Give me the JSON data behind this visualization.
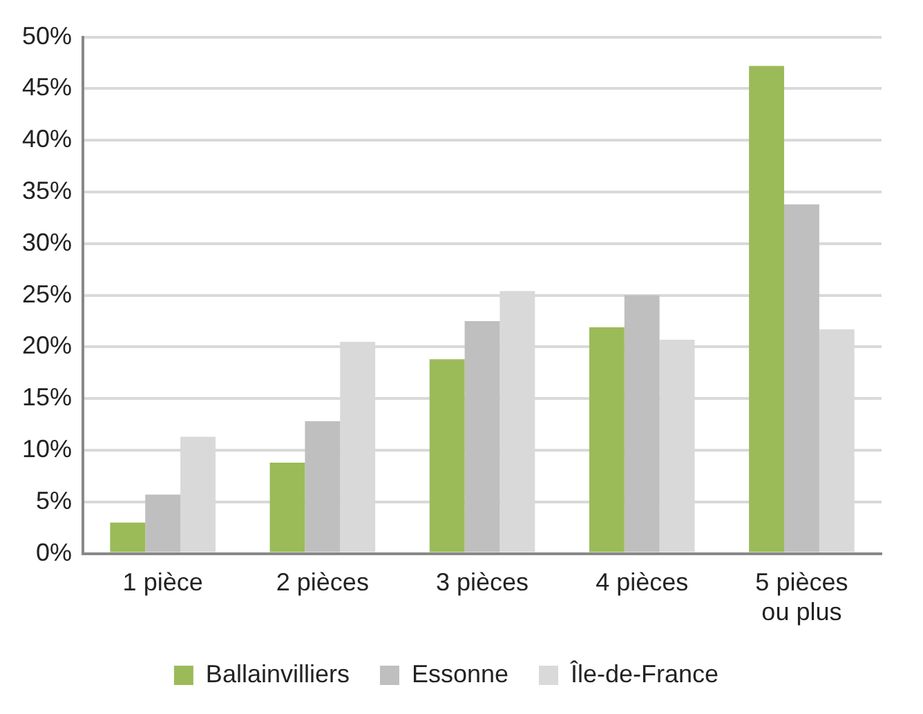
{
  "chart_data": {
    "type": "bar",
    "categories": [
      "1 pièce",
      "2 pièces",
      "3 pièces",
      "4 pièces",
      "5 pièces\nou plus"
    ],
    "series": [
      {
        "name": "Ballainvilliers",
        "color": "#9bbb59",
        "values": [
          3.0,
          8.8,
          18.8,
          21.9,
          47.2
        ]
      },
      {
        "name": "Essonne",
        "color": "#bfbfbf",
        "values": [
          5.7,
          12.8,
          22.5,
          25.0,
          33.8
        ]
      },
      {
        "name": "Île-de-France",
        "color": "#d9d9d9",
        "values": [
          11.3,
          20.5,
          25.4,
          20.7,
          21.7
        ]
      }
    ],
    "ylim": [
      0,
      50
    ],
    "yticks": [
      {
        "value": 0,
        "label": "0%"
      },
      {
        "value": 5,
        "label": "5%"
      },
      {
        "value": 10,
        "label": "10%"
      },
      {
        "value": 15,
        "label": "15%"
      },
      {
        "value": 20,
        "label": "20%"
      },
      {
        "value": 25,
        "label": "25%"
      },
      {
        "value": 30,
        "label": "30%"
      },
      {
        "value": 35,
        "label": "35%"
      },
      {
        "value": 40,
        "label": "40%"
      },
      {
        "value": 45,
        "label": "45%"
      },
      {
        "value": 50,
        "label": "50%"
      }
    ],
    "grid": "y",
    "legend": "bottom"
  }
}
